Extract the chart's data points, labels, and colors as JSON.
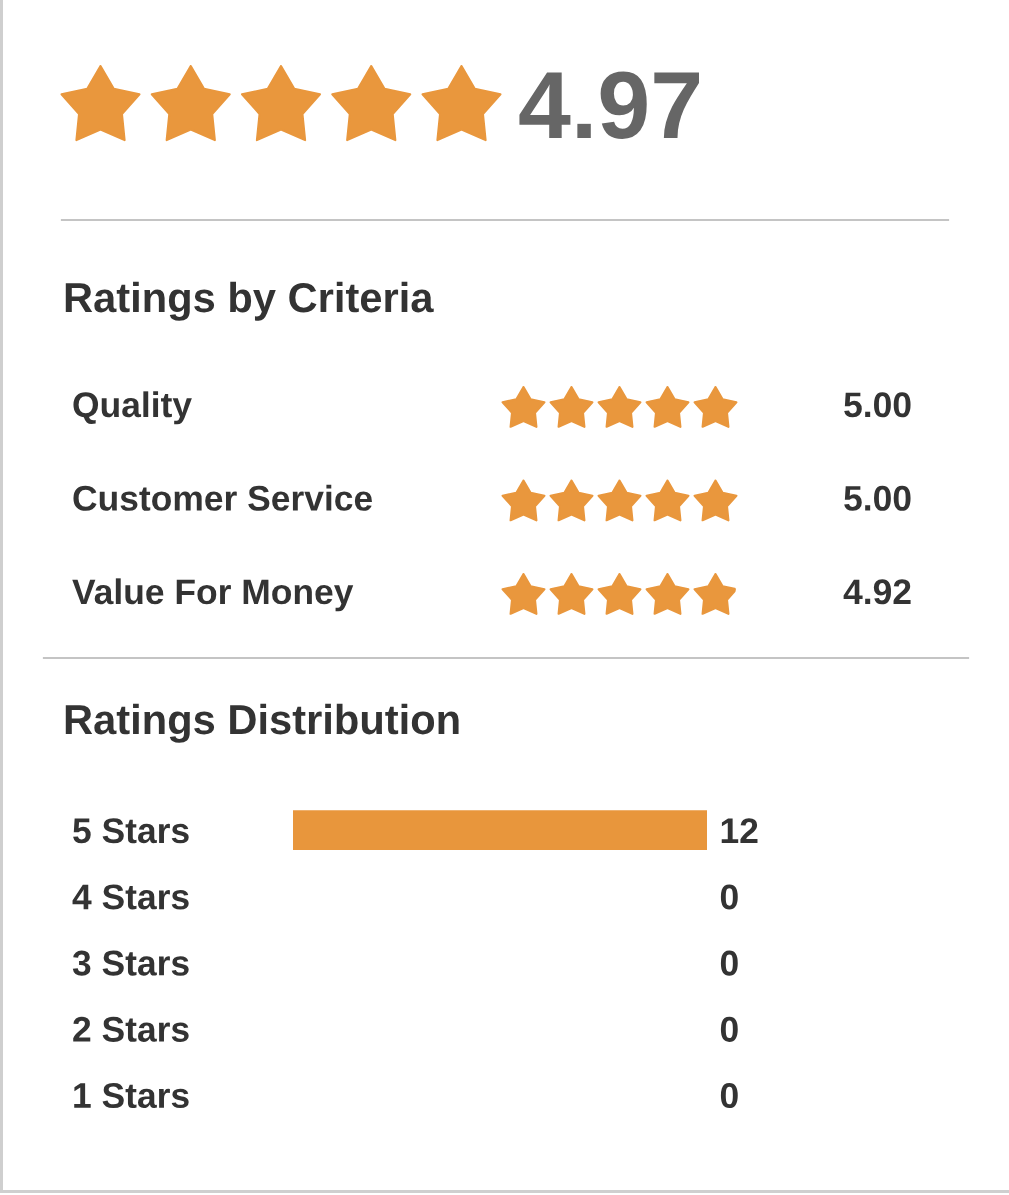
{
  "chart_data": [
    {
      "type": "other",
      "values": [
        4.97
      ],
      "value_labels": [
        "4.97"
      ]
    },
    {
      "type": "other",
      "title": "Ratings by Criteria",
      "categories": [
        "Quality",
        "Customer Service",
        "Value For Money"
      ],
      "values": [
        5.0,
        5.0,
        4.92
      ],
      "value_labels": [
        "5.00",
        "5.00",
        "4.92"
      ]
    },
    {
      "type": "bar",
      "orientation": "horizontal",
      "title": "Ratings Distribution",
      "categories": [
        "5 Stars",
        "4 Stars",
        "3 Stars",
        "2 Stars",
        "1 Stars"
      ],
      "values": [
        12,
        0,
        0,
        0,
        0
      ],
      "color": "#e8963c",
      "data_labels": true
    }
  ]
}
